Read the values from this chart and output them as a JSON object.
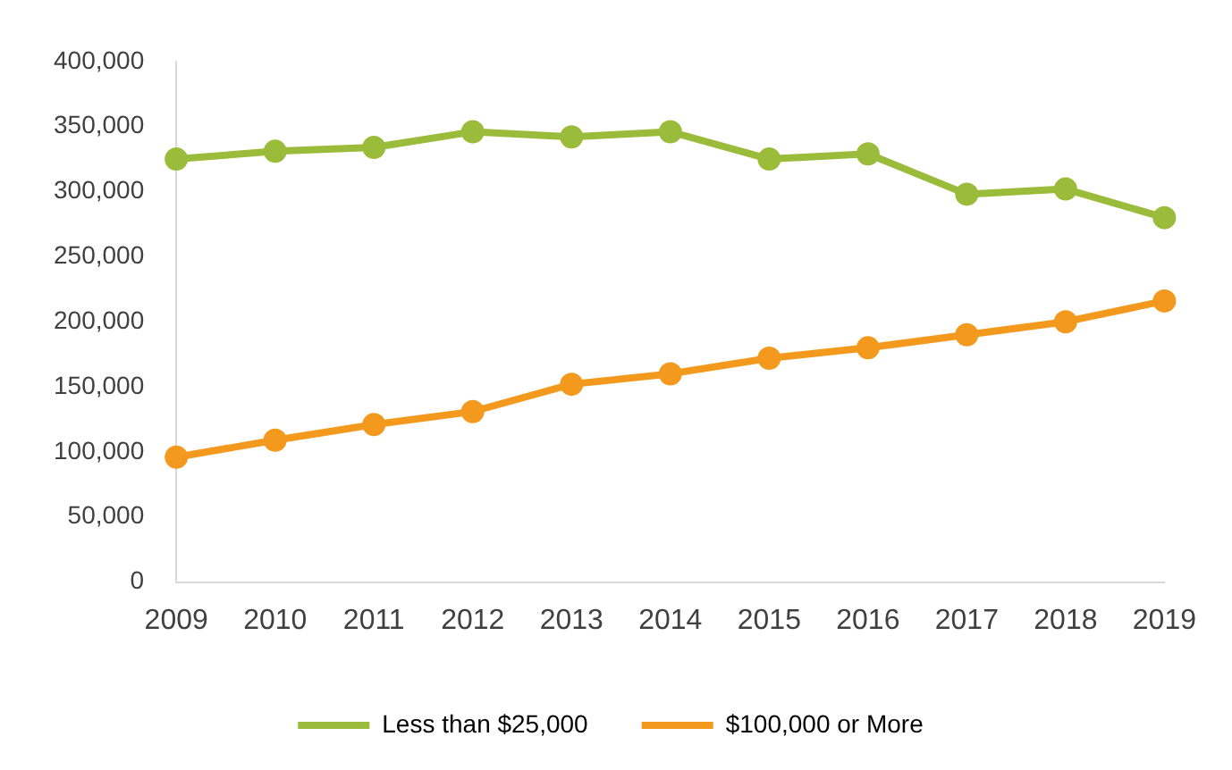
{
  "chart_data": {
    "type": "line",
    "categories": [
      "2009",
      "2010",
      "2011",
      "2012",
      "2013",
      "2014",
      "2015",
      "2016",
      "2017",
      "2018",
      "2019"
    ],
    "series": [
      {
        "name": "Less than $25,000",
        "color": "#9bbb3b",
        "values": [
          325000,
          331000,
          334000,
          346000,
          342000,
          346000,
          325000,
          329000,
          298000,
          302000,
          280000
        ]
      },
      {
        "name": "$100,000 or More",
        "color": "#f39a1e",
        "values": [
          96000,
          109000,
          121000,
          131000,
          152000,
          160000,
          172000,
          180000,
          190000,
          200000,
          216000
        ]
      }
    ],
    "ylim": [
      0,
      400000
    ],
    "yticks": [
      0,
      {
        "value": 50000,
        "label": "50,000"
      },
      {
        "value": 100000,
        "label": "100,000"
      },
      {
        "value": 150000,
        "label": "150,000"
      },
      {
        "value": 200000,
        "label": "200,000"
      },
      {
        "value": 250000,
        "label": "250,000"
      },
      {
        "value": 300000,
        "label": "300,000"
      },
      {
        "value": 350000,
        "label": "350,000"
      },
      {
        "value": 400000,
        "label": "400,000"
      }
    ],
    "grid": false,
    "legend": "bottom",
    "marker": "circle",
    "line_style": "solid"
  }
}
